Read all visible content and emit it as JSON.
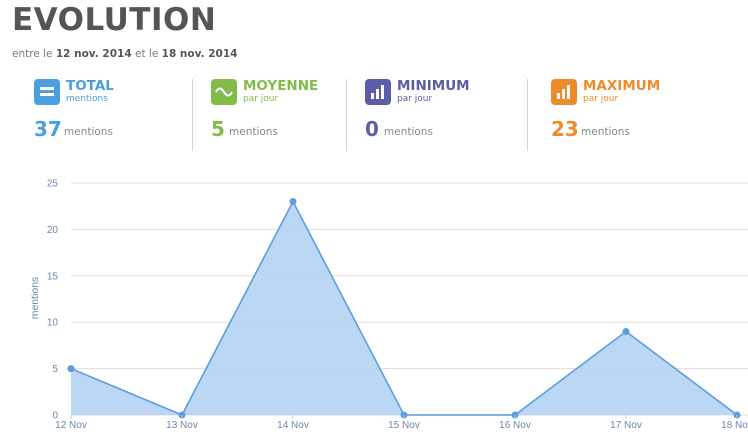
{
  "header": {
    "title": "EVOLUTION",
    "subtitle_prefix": "entre le",
    "date_start": "12 nov. 2014",
    "subtitle_mid": "et le",
    "date_end": "18 nov. 2014"
  },
  "stats": [
    {
      "label": "TOTAL",
      "sub": "mentions",
      "value": "37",
      "unit": "mentions",
      "color": "#4a9fe0",
      "icon": "equals-icon"
    },
    {
      "label": "MOYENNE",
      "sub": "par jour",
      "value": "5",
      "unit": "mentions",
      "color": "#82bd4b",
      "icon": "wave-icon"
    },
    {
      "label": "MINIMUM",
      "sub": "par jour",
      "value": "0",
      "unit": "mentions",
      "color": "#5b5ea6",
      "icon": "bars-icon"
    },
    {
      "label": "MAXIMUM",
      "sub": "par jour",
      "value": "23",
      "unit": "mentions",
      "color": "#ed8c2b",
      "icon": "bars-icon"
    }
  ],
  "chart_data": {
    "type": "area",
    "title": "",
    "xlabel": "",
    "ylabel": "mentions",
    "categories": [
      "12 Nov",
      "13 Nov",
      "14 Nov",
      "15 Nov",
      "16 Nov",
      "17 Nov",
      "18 Nov"
    ],
    "values": [
      5,
      0,
      23,
      0,
      0,
      9,
      0
    ],
    "ylim": [
      0,
      25
    ],
    "yticks": [
      "0",
      "5",
      "10",
      "15",
      "20",
      "25"
    ],
    "grid": true,
    "colors": {
      "line": "#5a9ee0",
      "fill": "#b7d5f2",
      "grid": "#dddddd",
      "axis_text": "#6b86a8"
    }
  }
}
